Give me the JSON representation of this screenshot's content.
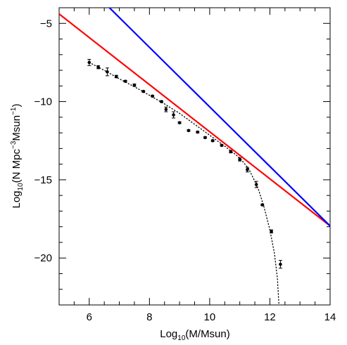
{
  "chart_data": {
    "type": "scatter",
    "xlabel": {
      "prefix": "Log",
      "sub": "10",
      "rest": "(M/Msun)"
    },
    "ylabel": {
      "prefix": "Log",
      "sub": "10",
      "mid": "(N Mpc",
      "sup": "−3",
      "mid2": "Msun",
      "sup2": "−1",
      "end": ")"
    },
    "xlim": [
      5,
      14
    ],
    "ylim": [
      -23,
      -4
    ],
    "xticks": [
      6,
      8,
      10,
      12,
      14
    ],
    "yticks": [
      -5,
      -10,
      -15,
      -20
    ],
    "grid": false,
    "colors": {
      "red": "#ff0000",
      "blue": "#0000ff",
      "points": "#000000"
    },
    "series": [
      {
        "style": "points-with-errorbars",
        "points": [
          {
            "x": 6.0,
            "y": -7.5,
            "err": 0.2
          },
          {
            "x": 6.3,
            "y": -7.8,
            "err": 0.1
          },
          {
            "x": 6.6,
            "y": -8.1,
            "err": 0.25
          },
          {
            "x": 6.9,
            "y": -8.4,
            "err": 0.08
          },
          {
            "x": 7.2,
            "y": -8.7,
            "err": 0.05
          },
          {
            "x": 7.5,
            "y": -8.95,
            "err": 0.08
          },
          {
            "x": 7.8,
            "y": -9.35,
            "err": 0.05
          },
          {
            "x": 8.1,
            "y": -9.65,
            "err": 0.05
          },
          {
            "x": 8.4,
            "y": -10.0,
            "err": 0.05
          },
          {
            "x": 8.55,
            "y": -10.5,
            "err": 0.15
          },
          {
            "x": 8.8,
            "y": -10.85,
            "err": 0.2
          },
          {
            "x": 9.0,
            "y": -11.35,
            "err": 0.05
          },
          {
            "x": 9.3,
            "y": -11.85,
            "err": 0.05
          },
          {
            "x": 9.6,
            "y": -11.95,
            "err": 0.05
          },
          {
            "x": 9.85,
            "y": -12.3,
            "err": 0.05
          },
          {
            "x": 10.1,
            "y": -12.5,
            "err": 0.05
          },
          {
            "x": 10.4,
            "y": -12.8,
            "err": 0.05
          },
          {
            "x": 10.7,
            "y": -13.2,
            "err": 0.08
          },
          {
            "x": 11.0,
            "y": -13.7,
            "err": 0.1
          },
          {
            "x": 11.25,
            "y": -14.35,
            "err": 0.15
          },
          {
            "x": 11.55,
            "y": -15.3,
            "err": 0.2
          },
          {
            "x": 11.75,
            "y": -16.6,
            "err": 0.05
          },
          {
            "x": 12.05,
            "y": -18.3,
            "err": 0.1
          },
          {
            "x": 12.35,
            "y": -20.4,
            "err": 0.25
          }
        ]
      },
      {
        "style": "dotted-fit",
        "points": [
          {
            "x": 6.0,
            "y": -7.5
          },
          {
            "x": 6.5,
            "y": -8.0
          },
          {
            "x": 7.0,
            "y": -8.55
          },
          {
            "x": 7.5,
            "y": -9.05
          },
          {
            "x": 8.0,
            "y": -9.6
          },
          {
            "x": 8.5,
            "y": -10.15
          },
          {
            "x": 9.0,
            "y": -10.75
          },
          {
            "x": 9.5,
            "y": -11.45
          },
          {
            "x": 10.0,
            "y": -12.15
          },
          {
            "x": 10.5,
            "y": -12.85
          },
          {
            "x": 11.0,
            "y": -13.6
          },
          {
            "x": 11.3,
            "y": -14.3
          },
          {
            "x": 11.6,
            "y": -15.5
          },
          {
            "x": 11.8,
            "y": -16.7
          },
          {
            "x": 12.0,
            "y": -18.2
          },
          {
            "x": 12.15,
            "y": -19.7
          },
          {
            "x": 12.25,
            "y": -21.3
          },
          {
            "x": 12.3,
            "y": -23.0
          }
        ]
      },
      {
        "style": "line",
        "color": "red",
        "points": [
          {
            "x": 5.0,
            "y": -4.4
          },
          {
            "x": 14.0,
            "y": -17.95
          }
        ]
      },
      {
        "style": "line",
        "color": "blue",
        "points": [
          {
            "x": 6.67,
            "y": -4.0
          },
          {
            "x": 14.0,
            "y": -17.95
          }
        ]
      }
    ]
  }
}
